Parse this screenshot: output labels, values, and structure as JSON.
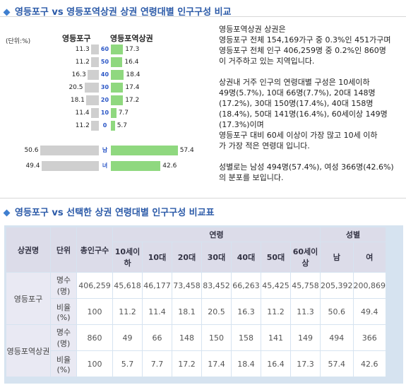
{
  "section1_title": "영등포구 vs 영등포역상권 상권 연령대별 인구구성 비교",
  "section2_title": "영등포구 vs 선택한 상권 연령대별 인구구성 비교표",
  "pyramid": {
    "unit": "(단위:%)",
    "left_label": "영등포구",
    "right_label": "영등포역상권",
    "rows": [
      {
        "mid": "60",
        "left": 11.3,
        "right": 17.3
      },
      {
        "mid": "50",
        "left": 11.2,
        "right": 16.4
      },
      {
        "mid": "40",
        "left": 16.3,
        "right": 18.4
      },
      {
        "mid": "30",
        "left": 20.5,
        "right": 17.4
      },
      {
        "mid": "20",
        "left": 18.1,
        "right": 17.2
      },
      {
        "mid": "10",
        "left": 11.4,
        "right": 7.7
      },
      {
        "mid": "0",
        "left": 11.2,
        "right": 5.7
      },
      {
        "mid": "남",
        "left": 50.6,
        "right": 57.4
      },
      {
        "mid": "녀",
        "left": 49.4,
        "right": 42.6
      }
    ]
  },
  "description": [
    "영등포역상권 상권은",
    "영등포구 전체 154,169가구 중 0.3%인 451가구며",
    "영등포구 전체 인구 406,259명 중 0.2%인 860명",
    "이 거주하고 있는 지역입니다.",
    "",
    "상권내 거주 인구의 연령대별 구성은 10세이하",
    "49명(5.7%), 10대 66명(7.7%), 20대 148명",
    "(17.2%), 30대 150명(17.4%), 40대 158명",
    "(18.4%), 50대 141명(16.4%), 60세이상 149명",
    "(17.3%)이며",
    "영등포구 대비 60세 이상이 가장 많고 10세 이하",
    "가 가장 적은 연령대 입니다.",
    "",
    "성별로는 남성 494명(57.4%), 여성 366명(42.6%)",
    "의 분포를 보입니다."
  ],
  "table": {
    "h_area": "상권명",
    "h_unit": "단위",
    "h_total": "총인구수",
    "h_age": "연령",
    "h_sex": "성별",
    "age_cols": [
      "10세이하",
      "10대",
      "20대",
      "30대",
      "40대",
      "50대",
      "60세이상"
    ],
    "sex_cols": [
      "남",
      "여"
    ],
    "groups": [
      {
        "name": "영등포구",
        "rows": [
          {
            "unit": "명수(명)",
            "values": [
              "406,259",
              "45,618",
              "46,177",
              "73,458",
              "83,452",
              "66,263",
              "45,425",
              "45,758",
              "205,392",
              "200,869"
            ]
          },
          {
            "unit": "비율(%)",
            "values": [
              "100",
              "11.2",
              "11.4",
              "18.1",
              "20.5",
              "16.3",
              "11.2",
              "11.3",
              "50.6",
              "49.4"
            ]
          }
        ]
      },
      {
        "name": "영등포역상권",
        "rows": [
          {
            "unit": "명수(명)",
            "values": [
              "860",
              "49",
              "66",
              "148",
              "150",
              "158",
              "141",
              "149",
              "494",
              "366"
            ]
          },
          {
            "unit": "비율(%)",
            "values": [
              "100",
              "5.7",
              "7.7",
              "17.2",
              "17.4",
              "18.4",
              "16.4",
              "17.3",
              "57.4",
              "42.6"
            ]
          }
        ]
      }
    ]
  },
  "colors": {
    "title": "#2b5aa8",
    "bar_left": "#cfcfcf",
    "bar_right": "#8fd87f",
    "mid_text": "#2a56c6",
    "table_border": "#d6e3f0"
  }
}
